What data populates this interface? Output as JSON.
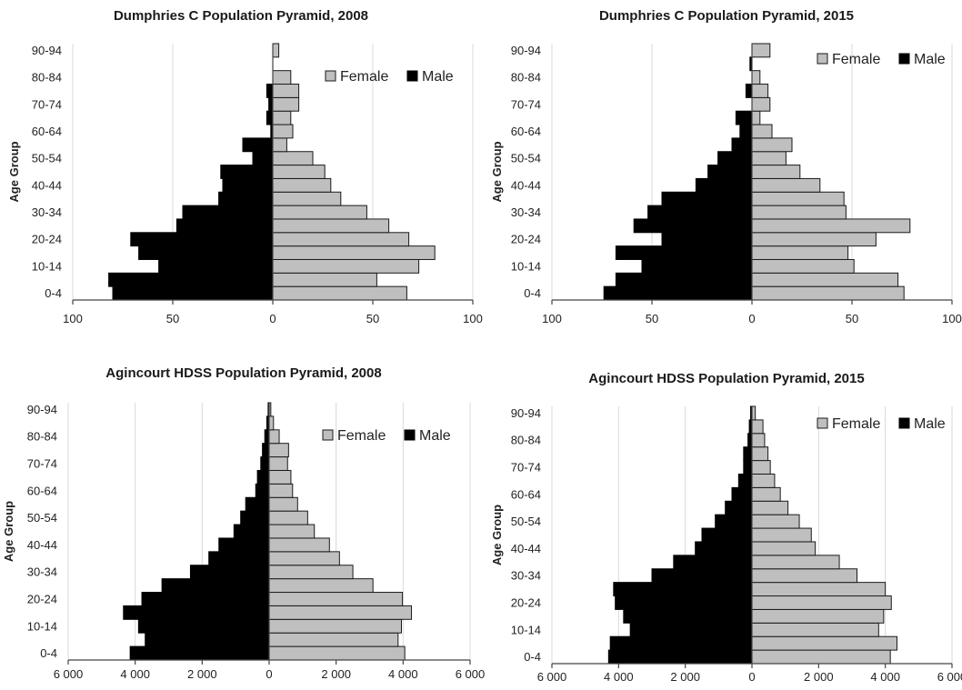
{
  "chart_data": [
    {
      "type": "bar",
      "title": "Dumphries C Population Pyramid, 2008",
      "ylabel": "Age Group",
      "xlabel": "",
      "categories": [
        "0-4",
        "5-9",
        "10-14",
        "15-19",
        "20-24",
        "25-29",
        "30-34",
        "35-39",
        "40-44",
        "45-49",
        "50-54",
        "55-59",
        "60-64",
        "65-69",
        "70-74",
        "75-79",
        "80-84",
        "85-89",
        "90-94"
      ],
      "y_tick_labels": [
        "0-4",
        "10-14",
        "20-24",
        "30-34",
        "40-44",
        "50-54",
        "60-64",
        "70-74",
        "80-84",
        "90-94"
      ],
      "xlim": [
        -100,
        100
      ],
      "x_ticks": [
        -100,
        -50,
        0,
        50,
        100
      ],
      "x_tick_labels": [
        "100",
        "50",
        "0",
        "50",
        "100"
      ],
      "legend": "top-right",
      "series": [
        {
          "name": "Female",
          "color": "#bfbfbf",
          "values": [
            67,
            52,
            73,
            81,
            68,
            58,
            47,
            34,
            29,
            26,
            20,
            7,
            10,
            9,
            13,
            13,
            9,
            0,
            3
          ]
        },
        {
          "name": "Male",
          "color": "#000000",
          "values": [
            80,
            82,
            57,
            67,
            71,
            48,
            45,
            27,
            25,
            26,
            10,
            15,
            1,
            3,
            2,
            3,
            0,
            0,
            0
          ]
        }
      ]
    },
    {
      "type": "bar",
      "title": "Dumphries C Population Pyramid, 2015",
      "ylabel": "Age Group",
      "xlabel": "",
      "categories": [
        "0-4",
        "5-9",
        "10-14",
        "15-19",
        "20-24",
        "25-29",
        "30-34",
        "35-39",
        "40-44",
        "45-49",
        "50-54",
        "55-59",
        "60-64",
        "65-69",
        "70-74",
        "75-79",
        "80-84",
        "85-89",
        "90-94"
      ],
      "y_tick_labels": [
        "0-4",
        "10-14",
        "20-24",
        "30-34",
        "40-44",
        "50-54",
        "60-64",
        "70-74",
        "80-84",
        "90-94"
      ],
      "xlim": [
        -100,
        100
      ],
      "x_ticks": [
        -100,
        -50,
        0,
        50,
        100
      ],
      "x_tick_labels": [
        "100",
        "50",
        "0",
        "50",
        "100"
      ],
      "legend": "top-right",
      "series": [
        {
          "name": "Female",
          "color": "#bfbfbf",
          "values": [
            76,
            73,
            51,
            48,
            62,
            79,
            47,
            46,
            34,
            24,
            17,
            20,
            10,
            4,
            9,
            8,
            4,
            0,
            9
          ]
        },
        {
          "name": "Male",
          "color": "#000000",
          "values": [
            74,
            68,
            55,
            68,
            45,
            59,
            52,
            45,
            28,
            22,
            17,
            10,
            6,
            8,
            0,
            3,
            0,
            1,
            0
          ]
        }
      ]
    },
    {
      "type": "bar",
      "title": "Agincourt HDSS Population Pyramid, 2008",
      "ylabel": "Age Group",
      "xlabel": "",
      "categories": [
        "0-4",
        "5-9",
        "10-14",
        "15-19",
        "20-24",
        "25-29",
        "30-34",
        "35-39",
        "40-44",
        "45-49",
        "50-54",
        "55-59",
        "60-64",
        "65-69",
        "70-74",
        "75-79",
        "80-84",
        "85-89",
        "90-94"
      ],
      "y_tick_labels": [
        "0-4",
        "10-14",
        "20-24",
        "30-34",
        "40-44",
        "50-54",
        "60-64",
        "70-74",
        "80-84",
        "90-94"
      ],
      "xlim": [
        -6000,
        6000
      ],
      "x_ticks": [
        -6000,
        -4000,
        -2000,
        0,
        2000,
        4000,
        6000
      ],
      "x_tick_labels": [
        "6 000",
        "4 000",
        "2 000",
        "0",
        "2 000",
        "4 000",
        "6 000"
      ],
      "legend": "top-right",
      "series": [
        {
          "name": "Female",
          "color": "#bfbfbf",
          "values": [
            4050,
            3850,
            3950,
            4250,
            3980,
            3100,
            2500,
            2100,
            1800,
            1350,
            1150,
            850,
            700,
            650,
            550,
            580,
            300,
            130,
            50
          ]
        },
        {
          "name": "Male",
          "color": "#000000",
          "values": [
            4150,
            3700,
            3900,
            4350,
            3800,
            3200,
            2350,
            1800,
            1500,
            1050,
            850,
            700,
            400,
            350,
            250,
            200,
            130,
            70,
            30
          ]
        }
      ]
    },
    {
      "type": "bar",
      "title": "Agincourt HDSS Population Pyramid, 2015",
      "ylabel": "Age Group",
      "xlabel": "",
      "categories": [
        "0-4",
        "5-9",
        "10-14",
        "15-19",
        "20-24",
        "25-29",
        "30-34",
        "35-39",
        "40-44",
        "45-49",
        "50-54",
        "55-59",
        "60-64",
        "65-69",
        "70-74",
        "75-79",
        "80-84",
        "85-89",
        "90-94"
      ],
      "y_tick_labels": [
        "0-4",
        "10-14",
        "20-24",
        "30-34",
        "40-44",
        "50-54",
        "60-64",
        "70-74",
        "80-84",
        "90-94"
      ],
      "xlim": [
        -6000,
        6000
      ],
      "x_ticks": [
        -6000,
        -4000,
        -2000,
        0,
        2000,
        4000,
        6000
      ],
      "x_tick_labels": [
        "6 000",
        "4 000",
        "2 000",
        "0",
        "2 000",
        "4 000",
        "6 000"
      ],
      "legend": "top-right",
      "series": [
        {
          "name": "Female",
          "color": "#bfbfbf",
          "values": [
            4150,
            4350,
            3800,
            3950,
            4180,
            4000,
            3150,
            2620,
            1900,
            1780,
            1420,
            1080,
            850,
            680,
            550,
            480,
            380,
            330,
            100
          ]
        },
        {
          "name": "Male",
          "color": "#000000",
          "values": [
            4300,
            4250,
            3650,
            3850,
            4100,
            4150,
            3000,
            2350,
            1700,
            1500,
            1100,
            800,
            600,
            400,
            250,
            250,
            120,
            80,
            40
          ]
        }
      ]
    }
  ]
}
